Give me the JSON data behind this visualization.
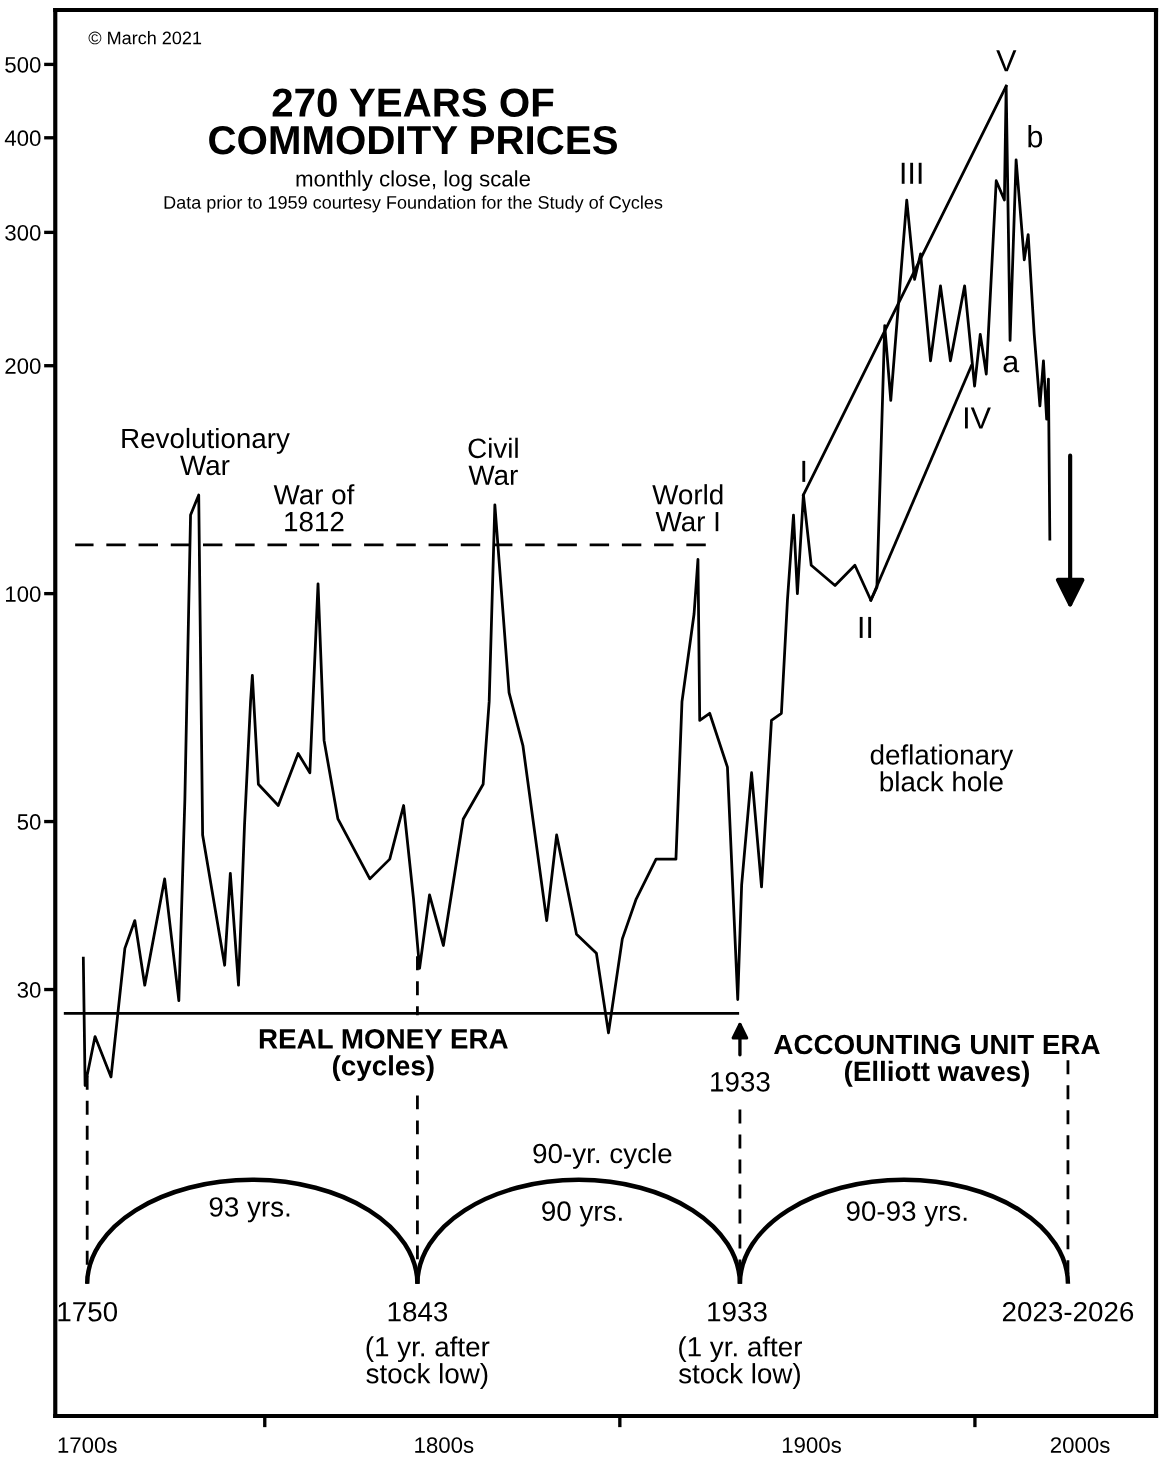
{
  "chart_data": {
    "type": "line",
    "title": "270 YEARS OF\nCOMMODITY PRICES",
    "subtitle": "monthly close, log scale",
    "log": "y",
    "grid": false,
    "marker": "none",
    "xlim": [
      1741,
      2051
    ],
    "ylim": [
      8.2,
      590
    ],
    "xticks": [
      1750,
      {
        "value": 1800,
        "label": null
      },
      1843,
      {
        "value": 1900,
        "label": null
      },
      1933,
      {
        "value": 2000,
        "label": null
      }
    ],
    "yticks": [
      30,
      50,
      100,
      200,
      300,
      400,
      500
    ],
    "series": [
      {
        "color": "#000000",
        "line_style": "solid",
        "x": [
          1748.9,
          1749.4,
          1752.2,
          1756.7,
          1760.6,
          1763.4,
          1766.2,
          1771.8,
          1775.8,
          1777.5,
          1779.1,
          1781.4,
          1782.5,
          1788.7,
          1790.3,
          1792.6,
          1794.3,
          1796,
          1796.5,
          1798.2,
          1803.8,
          1809.4,
          1812.7,
          1815,
          1816.7,
          1820.6,
          1829.6,
          1835.2,
          1839.1,
          1841.9,
          1843.6,
          1846.4,
          1850.3,
          1855.9,
          1861.5,
          1863.2,
          1864.8,
          1868.8,
          1872.7,
          1879.4,
          1882.2,
          1887.8,
          1893.4,
          1896.8,
          1900.7,
          1904.6,
          1910.2,
          1915.8,
          1917.5,
          1920.9,
          1922,
          1922.5,
          1925.3,
          1930.3,
          1933.2,
          1934.3,
          1937.1,
          1939.9,
          1942.7,
          1945.5,
          1947.2,
          1948.9,
          1950,
          1951.7,
          1953.9,
          1960.6,
          1966.2,
          1970.7,
          1972.4,
          1974.6,
          1976.3,
          1980.8,
          1983,
          1984.7,
          1987.5,
          1990.3,
          1993.1,
          1997.1,
          1999.9,
          2001.5,
          2003.2,
          2006,
          2008.3,
          2008.8,
          2009.9,
          2011.6,
          2013.9,
          2015,
          2016.7,
          2018.3,
          2019.3,
          2020.2,
          2020.7,
          2021.1
        ],
        "values": [
          33,
          22.4,
          26,
          23,
          34,
          37,
          30.4,
          42,
          29,
          53.5,
          127,
          135,
          48,
          32.3,
          42.7,
          30.4,
          49.5,
          72,
          78,
          56,
          52.5,
          61.5,
          58,
          103,
          64,
          50.4,
          42,
          44.6,
          52.5,
          39.5,
          32,
          40,
          34.3,
          50.4,
          56,
          72,
          131,
          74,
          63,
          37,
          48,
          35.5,
          33.5,
          26.3,
          35,
          39.5,
          44.6,
          44.6,
          72,
          94,
          111,
          68,
          69.5,
          59,
          29.1,
          41.2,
          58,
          41,
          68,
          69.5,
          98,
          127,
          100,
          135,
          109,
          102.5,
          109,
          98,
          102,
          226,
          180,
          331,
          260,
          281,
          203,
          255,
          203,
          255,
          188,
          220,
          195,
          351,
          331,
          468,
          216,
          374,
          276,
          298,
          220,
          177,
          203,
          170,
          192,
          118
        ]
      },
      {
        "color": "#000000",
        "line_style": "dashed",
        "x": [
          1746.6,
          1924.2
        ],
        "values": [
          116,
          116
        ]
      },
      {
        "color": "#000000",
        "line_style": "solid",
        "x": [
          1743.8,
          1933.2
        ],
        "values": [
          27.9,
          27.9
        ]
      },
      {
        "color": "#000000",
        "line_style": "solid",
        "x": [
          1951.7,
          2008.8
        ],
        "values": [
          135,
          468
        ]
      },
      {
        "color": "#000000",
        "line_style": "solid",
        "x": [
          1970.7,
          1999
        ],
        "values": [
          98,
          200
        ]
      }
    ],
    "annotations": [
      "© March 2021",
      "Data prior to 1959 courtesy Foundation for the Study of Cycles",
      "Revolutionary\nWar",
      "War of\n1812",
      "Civil\nWar",
      "World\nWar I",
      "deflationary\nblack hole",
      "REAL MONEY ERA\n(cycles)",
      "ACCOUNTING UNIT ERA\n(Elliott waves)",
      "1933",
      "90-yr. cycle",
      "93 yrs.",
      "90 yrs.",
      "90-93 yrs.",
      "(1 yr. after\nstock low)",
      "(1 yr. after\nstock low)",
      "2023-2026",
      "I",
      "II",
      "III",
      "IV",
      "V",
      "a",
      "b",
      "1700s",
      "1800s",
      "1900s",
      "2000s"
    ]
  }
}
